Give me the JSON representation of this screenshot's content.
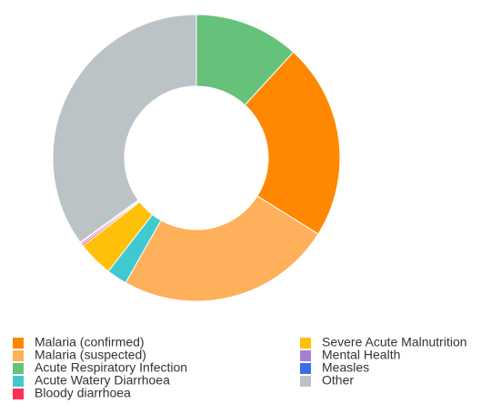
{
  "chart_data": {
    "type": "pie",
    "donut": true,
    "series": [
      {
        "name": "Acute Respiratory Infection",
        "color": "#66c27a",
        "value": 11.8
      },
      {
        "name": "Malaria (confirmed)",
        "color": "#ff8800",
        "value": 22.1
      },
      {
        "name": "Malaria (suspected)",
        "color": "#ffb05a",
        "value": 24.3
      },
      {
        "name": "Acute Watery Diarrhoea",
        "color": "#40c9d0",
        "value": 2.3
      },
      {
        "name": "Severe Acute Malnutrition",
        "color": "#ffc107",
        "value": 4.0
      },
      {
        "name": "Bloody diarrhoea",
        "color": "#ff2e55",
        "value": 0.2
      },
      {
        "name": "Mental Health",
        "color": "#a57fd4",
        "value": 0.2
      },
      {
        "name": "Measles",
        "color": "#3a6ee8",
        "value": 0.1
      },
      {
        "name": "Other",
        "color": "#bcc3c6",
        "value": 35.0
      }
    ]
  }
}
